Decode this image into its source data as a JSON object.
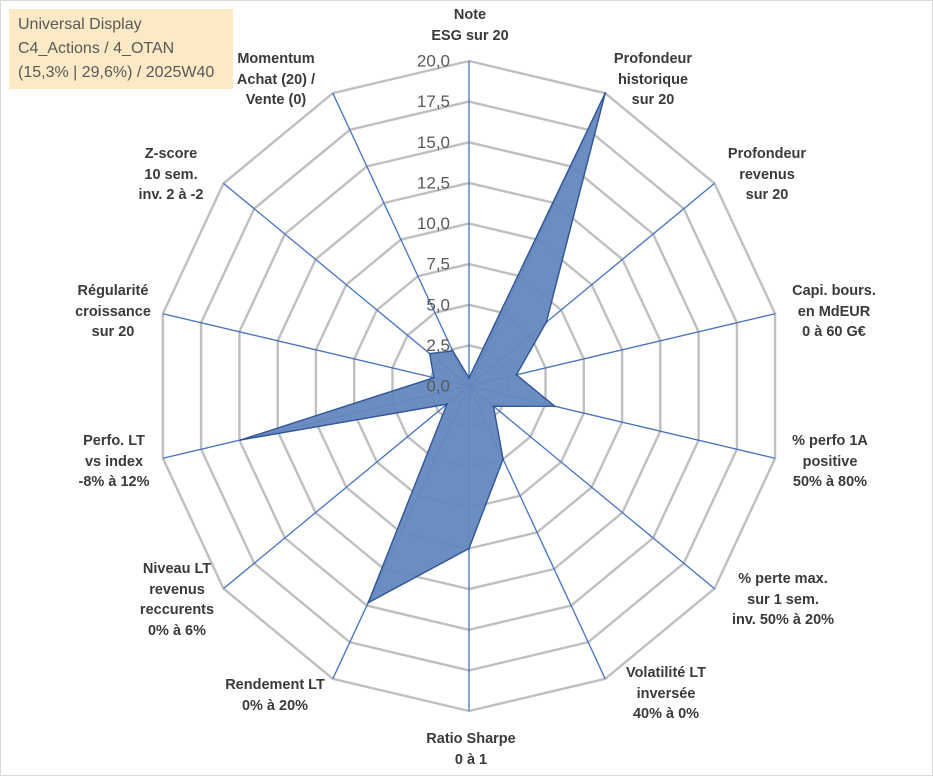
{
  "chart_data": {
    "type": "radar",
    "title": "Universal Display",
    "subtitle": [
      "C4_Actions / 4_OTAN",
      "(15,3% | 29,6%) / 2025W40"
    ],
    "categories": [
      "Note\nESG sur 20",
      "Profondeur\nhistorique\nsur 20",
      "Profondeur\nrevenus\nsur 20",
      "Capi. bours.\nen MdEUR\n0 à 60 G€",
      "% perfo 1A\npositive\n50% à 80%",
      "% perte max.\nsur 1 sem.\ninv. 50% à 20%",
      "Volatilité LT\ninversée\n40% à 0%",
      "Ratio Sharpe\n0 à 1",
      "Rendement LT\n0% à 20%",
      "Niveau LT\nrevenus\nreccurents\n0% à 6%",
      "Perfo. LT\nvs index\n-8% à 12%",
      "Régularité\ncroissance\nsur 20",
      "Z-score\n10 sem.\ninv. 2 à -2",
      "Momentum\nAchat (20) /\nVente (0)"
    ],
    "values": [
      0.5,
      20.0,
      6.3,
      3.1,
      5.6,
      2.0,
      5.0,
      10.0,
      14.8,
      1.8,
      14.9,
      2.3,
      3.2,
      2.4
    ],
    "r_min": 0,
    "r_max": 20,
    "tick_step": 2.5,
    "tick_labels": [
      "0,0",
      "2,5",
      "5,0",
      "7,5",
      "10,0",
      "12,5",
      "15,0",
      "17,5",
      "20,0"
    ],
    "grid": true,
    "legend": "none",
    "colors": {
      "ring": "#BFBFBF",
      "spoke": "#4472C4",
      "series_fill": "#6487BE",
      "series_stroke": "#2F5597",
      "tick_label": "#595959"
    }
  }
}
